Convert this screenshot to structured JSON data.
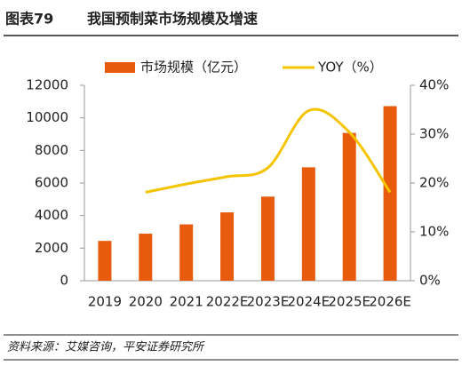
{
  "header": {
    "figure": "图表79",
    "title": "我国预制菜市场规模及增速"
  },
  "chart_data": {
    "type": "bar_line",
    "categories": [
      "2019",
      "2020",
      "2021",
      "2022E",
      "2023E",
      "2024E",
      "2025E",
      "2026E"
    ],
    "series": [
      {
        "name": "市场规模（亿元）",
        "color": "#e85a0c",
        "type": "bar",
        "values": [
          2445,
          2888,
          3459,
          4196,
          5165,
          6961,
          9076,
          10720
        ]
      },
      {
        "name": "YOY（%）",
        "color": "#f5c400",
        "type": "line",
        "axis": "y2",
        "values": [
          null,
          18.1,
          19.8,
          21.3,
          23.1,
          34.8,
          30.4,
          18.1
        ]
      }
    ],
    "ylim": [
      0,
      12000
    ],
    "yticks": [
      0,
      2000,
      4000,
      6000,
      8000,
      10000,
      12000
    ],
    "y2lim": [
      0,
      40
    ],
    "y2ticks": [
      {
        "value": 0,
        "label": "0%"
      },
      {
        "value": 10,
        "label": "10%"
      },
      {
        "value": 20,
        "label": "20%"
      },
      {
        "value": 30,
        "label": "30%"
      },
      {
        "value": 40,
        "label": "40%"
      }
    ],
    "legend": "top"
  },
  "footer": {
    "source": "资料来源：艾媒咨询，平安证券研究所"
  }
}
